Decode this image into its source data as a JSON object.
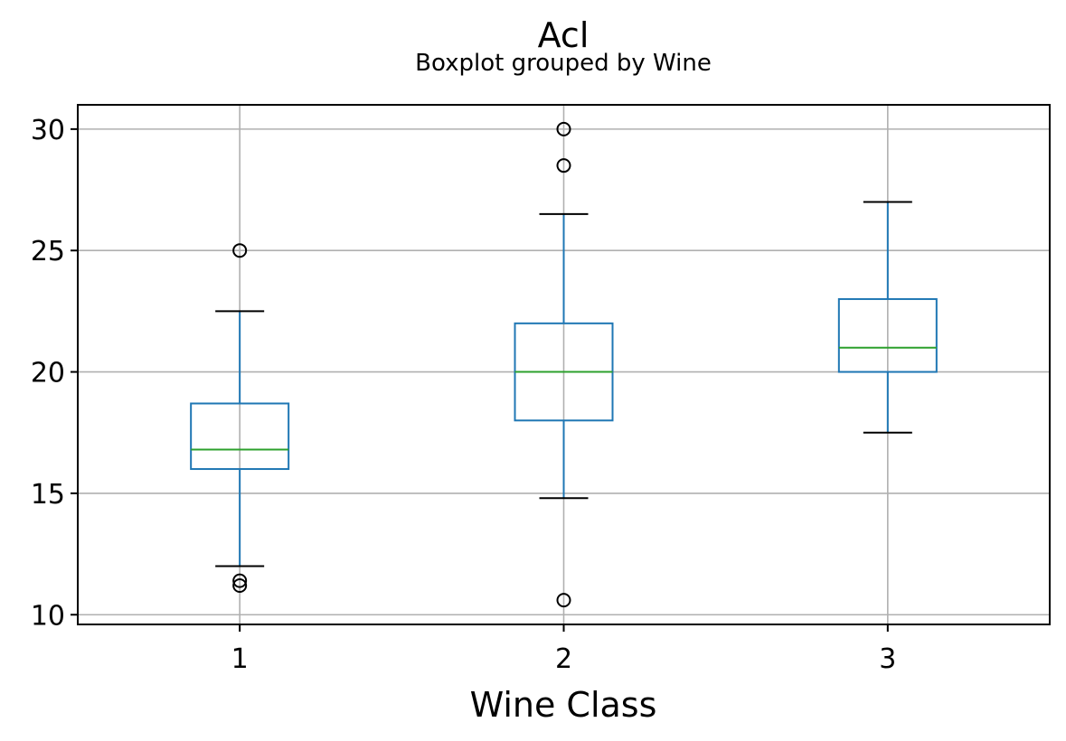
{
  "chart_data": {
    "type": "box",
    "title": "Acl",
    "subtitle": "Boxplot grouped by Wine",
    "xlabel": "Wine Class",
    "ylabel": "",
    "categories": [
      "1",
      "2",
      "3"
    ],
    "ylim": [
      9.6,
      31.0
    ],
    "yticks": [
      10,
      15,
      20,
      25,
      30
    ],
    "grid": true,
    "colors": {
      "box": "#1f77b4",
      "median": "#2ca02c",
      "cap": "#000000",
      "flier": "#000000",
      "grid": "#b0b0b0"
    },
    "boxes": [
      {
        "category": "1",
        "whisker_low": 12.0,
        "q1": 16.0,
        "median": 16.8,
        "q3": 18.7,
        "whisker_high": 22.5,
        "outliers": [
          25.0,
          11.4,
          11.2
        ]
      },
      {
        "category": "2",
        "whisker_low": 14.8,
        "q1": 18.0,
        "median": 20.0,
        "q3": 22.0,
        "whisker_high": 26.5,
        "outliers": [
          30.0,
          28.5,
          10.6
        ]
      },
      {
        "category": "3",
        "whisker_low": 17.5,
        "q1": 20.0,
        "median": 21.0,
        "q3": 23.0,
        "whisker_high": 27.0,
        "outliers": []
      }
    ]
  }
}
